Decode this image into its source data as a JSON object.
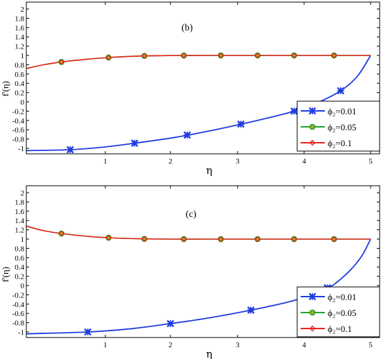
{
  "colors": {
    "blue": "#1f3be0",
    "green": "#1fa52a",
    "red": "#e8221c",
    "marker_fill": "#b9a12a"
  },
  "chart_data": [
    {
      "type": "line",
      "panel_label": "(b)",
      "xlabel": "η",
      "ylabel": "f'(η)",
      "xlim": [
        0.1,
        5
      ],
      "ylim": [
        -1.1,
        2.1
      ],
      "xticks": [
        1,
        2,
        3,
        4,
        5
      ],
      "yticks": [
        "2",
        "1.8",
        "1.6",
        "1.4",
        "1.2",
        "1",
        "0.8",
        "0.6",
        "0.4",
        "0.2",
        "0",
        "-0.2",
        "-0.4",
        "-0.6",
        "-0.8",
        "-1"
      ],
      "ytick_values": [
        2,
        1.8,
        1.6,
        1.4,
        1.2,
        1,
        0.8,
        0.6,
        0.4,
        0.2,
        0,
        -0.2,
        -0.4,
        -0.6,
        -0.8,
        -1
      ],
      "legend_position": "lower-right",
      "series": [
        {
          "name": "ϕ₂=0.01",
          "color": "blue",
          "marker": "x",
          "x": [
            0.1,
            0.6,
            1.0,
            1.45,
            2.0,
            2.5,
            3.05,
            3.5,
            3.85,
            4.2,
            4.55,
            4.8,
            5.0
          ],
          "y": [
            -1.05,
            -1.03,
            -0.97,
            -0.89,
            -0.78,
            -0.65,
            -0.48,
            -0.33,
            -0.2,
            -0.02,
            0.24,
            0.55,
            1.0
          ],
          "marker_x": [
            0.6,
            1.45,
            2.25,
            3.05,
            3.85,
            4.55
          ]
        },
        {
          "name": "ϕ₂=0.05",
          "color": "green",
          "marker": "o",
          "x": [
            0.1,
            0.3,
            0.5,
            0.8,
            1.05,
            1.3,
            1.6,
            2.0,
            2.5,
            3.0,
            4.0,
            5.0
          ],
          "y": [
            0.72,
            0.8,
            0.86,
            0.92,
            0.955,
            0.975,
            0.99,
            0.997,
            1.0,
            1.0,
            1.0,
            1.0
          ],
          "marker_x": [
            0.5,
            1.05,
            1.6,
            2.2,
            2.75,
            3.3,
            3.85,
            4.45
          ]
        },
        {
          "name": "ϕ₂=0.1",
          "color": "red",
          "marker": "diamond",
          "x": [
            0.1,
            0.3,
            0.5,
            0.8,
            1.05,
            1.3,
            1.6,
            2.0,
            2.5,
            3.0,
            4.0,
            5.0
          ],
          "y": [
            0.72,
            0.8,
            0.86,
            0.92,
            0.955,
            0.975,
            0.99,
            0.997,
            1.0,
            1.0,
            1.0,
            1.0
          ],
          "marker_x": [
            0.5,
            1.05,
            1.6,
            2.2,
            2.75,
            3.3,
            3.85,
            4.45
          ]
        }
      ]
    },
    {
      "type": "line",
      "panel_label": "(c)",
      "xlabel": "η",
      "ylabel": "f'(η)",
      "xlim": [
        0.1,
        5
      ],
      "ylim": [
        -1.1,
        2.1
      ],
      "xticks": [
        1,
        2,
        3,
        4,
        5
      ],
      "yticks": [
        "2",
        "1.8",
        "1.6",
        "1.4",
        "1.2",
        "1",
        "0.8",
        "0.6",
        "0.4",
        "0.2",
        "0",
        "-0.2",
        "-0.4",
        "-0.6",
        "-0.8",
        "-1"
      ],
      "ytick_values": [
        2,
        1.8,
        1.6,
        1.4,
        1.2,
        1,
        0.8,
        0.6,
        0.4,
        0.2,
        0,
        -0.2,
        -0.4,
        -0.6,
        -0.8,
        -1
      ],
      "legend_position": "lower-right",
      "series": [
        {
          "name": "ϕ₂=0.01",
          "color": "blue",
          "marker": "x",
          "x": [
            0.1,
            0.8,
            1.4,
            2.0,
            2.6,
            3.2,
            3.8,
            4.3,
            4.6,
            4.85,
            5.0
          ],
          "y": [
            -1.04,
            -1.0,
            -0.93,
            -0.82,
            -0.69,
            -0.53,
            -0.34,
            -0.1,
            0.2,
            0.6,
            1.0
          ],
          "marker_x": [
            0.8,
            2.0,
            3.2,
            4.35
          ]
        },
        {
          "name": "ϕ₂=0.05",
          "color": "green",
          "marker": "o",
          "x": [
            0.1,
            0.3,
            0.5,
            0.8,
            1.05,
            1.3,
            1.6,
            2.0,
            2.5,
            3.0,
            4.0,
            5.0
          ],
          "y": [
            1.28,
            1.18,
            1.12,
            1.06,
            1.03,
            1.015,
            1.005,
            1.0,
            1.0,
            1.0,
            1.0,
            1.0
          ],
          "marker_x": [
            0.5,
            1.05,
            1.6,
            2.2,
            2.75,
            3.3,
            3.85,
            4.45
          ]
        },
        {
          "name": "ϕ₂=0.1",
          "color": "red",
          "marker": "diamond",
          "x": [
            0.1,
            0.3,
            0.5,
            0.8,
            1.05,
            1.3,
            1.6,
            2.0,
            2.5,
            3.0,
            4.0,
            5.0
          ],
          "y": [
            1.28,
            1.18,
            1.12,
            1.06,
            1.03,
            1.015,
            1.005,
            1.0,
            1.0,
            1.0,
            1.0,
            1.0
          ],
          "marker_x": [
            0.5,
            1.05,
            1.6,
            2.2,
            2.75,
            3.3,
            3.85,
            4.45
          ]
        }
      ]
    }
  ]
}
